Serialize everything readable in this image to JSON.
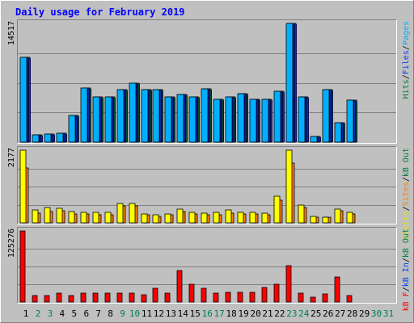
{
  "chart_data": {
    "type": "bar",
    "title": "Daily usage for February 2019",
    "days": [
      "1",
      "2",
      "3",
      "4",
      "5",
      "6",
      "7",
      "8",
      "9",
      "10",
      "11",
      "12",
      "13",
      "14",
      "15",
      "16",
      "17",
      "18",
      "19",
      "20",
      "21",
      "22",
      "23",
      "24",
      "25",
      "26",
      "27",
      "28",
      "29",
      "30",
      "31"
    ],
    "weekend_days": [
      "2",
      "3",
      "9",
      "10",
      "16",
      "17",
      "23",
      "24",
      "30",
      "31"
    ],
    "panels": [
      {
        "id": "top",
        "max_label": "14517",
        "ymax": 14517,
        "side_labels": [
          {
            "text": "Hits",
            "color": "#008040"
          },
          {
            "text": "/",
            "color": "#000000"
          },
          {
            "text": "Files",
            "color": "#0040ff"
          },
          {
            "text": "/",
            "color": "#000000"
          },
          {
            "text": "Pages",
            "color": "#00b0ff"
          }
        ],
        "series": [
          {
            "name": "Pages",
            "color": "#00b0ff",
            "values": [
              10400,
              880,
              980,
              1080,
              3290,
              6620,
              5560,
              5560,
              6420,
              7230,
              6420,
              6420,
              5560,
              5780,
              5560,
              6520,
              5250,
              5560,
              5900,
              5250,
              5250,
              6220,
              14517,
              5560,
              700,
              6420,
              2380,
              5150,
              0,
              0,
              0
            ]
          },
          {
            "name": "Files",
            "color": "#0040ff",
            "values": [
              10400,
              880,
              980,
              1080,
              3290,
              6620,
              5560,
              5560,
              6420,
              7230,
              6420,
              6420,
              5560,
              5780,
              5560,
              6520,
              5250,
              5560,
              5900,
              5250,
              5250,
              6220,
              14517,
              5560,
              700,
              6420,
              2380,
              5150,
              0,
              0,
              0
            ]
          },
          {
            "name": "Hits",
            "color": "#008040",
            "values": [
              10400,
              880,
              980,
              1080,
              3290,
              6620,
              5560,
              5560,
              6420,
              7230,
              6420,
              6420,
              5560,
              5780,
              5560,
              6520,
              5250,
              5560,
              5900,
              5250,
              5250,
              6220,
              14517,
              5560,
              700,
              6420,
              2380,
              5150,
              0,
              0,
              0
            ]
          }
        ]
      },
      {
        "id": "middle",
        "max_label": "2177",
        "ymax": 2177,
        "side_labels": [
          {
            "text": "Visits",
            "color": "#e0e000"
          },
          {
            "text": "/",
            "color": "#000000"
          },
          {
            "text": "Sites",
            "color": "#ff8000"
          },
          {
            "text": "/",
            "color": "#000000"
          },
          {
            "text": "kB Out",
            "color": "#008040"
          }
        ],
        "series": [
          {
            "name": "Visits",
            "color": "#ffff00",
            "values": [
              2177,
              380,
              460,
              440,
              340,
              320,
              320,
              310,
              590,
              590,
              270,
              230,
              270,
              410,
              310,
              280,
              310,
              380,
              310,
              310,
              300,
              800,
              2177,
              540,
              200,
              180,
              420,
              320,
              0,
              0,
              0
            ]
          },
          {
            "name": "Sites",
            "color": "#ff8000",
            "values": [
              1650,
              280,
              350,
              360,
              270,
              260,
              250,
              250,
              520,
              520,
              230,
              200,
              230,
              340,
              260,
              230,
              250,
              300,
              260,
              260,
              240,
              670,
              1800,
              470,
              170,
              160,
              360,
              270,
              0,
              0,
              0
            ]
          }
        ]
      },
      {
        "id": "bottom",
        "max_label": "125276",
        "ymax": 125276,
        "side_labels": [
          {
            "text": "kB F",
            "color": "#ff0000"
          },
          {
            "text": "/",
            "color": "#000000"
          },
          {
            "text": "kB In",
            "color": "#0040ff"
          },
          {
            "text": "/",
            "color": "#000000"
          },
          {
            "text": "kB Out",
            "color": "#008040"
          }
        ],
        "series": [
          {
            "name": "kB F",
            "color": "#ff0000",
            "values": [
              125276,
              12000,
              12000,
              15000,
              11000,
              15000,
              16000,
              15000,
              15000,
              16000,
              13000,
              24000,
              16000,
              56000,
              31000,
              24000,
              16000,
              17000,
              17000,
              17000,
              26000,
              31000,
              64000,
              15000,
              9000,
              14000,
              44000,
              12000,
              0,
              0,
              0
            ]
          }
        ]
      }
    ],
    "colors": {
      "background": "#c0c0c0",
      "frame_light": "#ffffff",
      "frame_dark": "#808080",
      "title": "#0000ff",
      "weekday": "#000000",
      "weekend": "#00804a",
      "gridline": "#808080"
    }
  }
}
